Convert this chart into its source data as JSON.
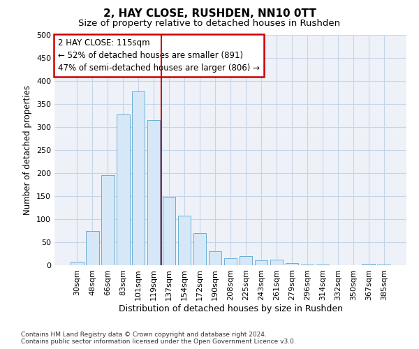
{
  "title": "2, HAY CLOSE, RUSHDEN, NN10 0TT",
  "subtitle": "Size of property relative to detached houses in Rushden",
  "xlabel": "Distribution of detached houses by size in Rushden",
  "ylabel": "Number of detached properties",
  "categories": [
    "30sqm",
    "48sqm",
    "66sqm",
    "83sqm",
    "101sqm",
    "119sqm",
    "137sqm",
    "154sqm",
    "172sqm",
    "190sqm",
    "208sqm",
    "225sqm",
    "243sqm",
    "261sqm",
    "279sqm",
    "296sqm",
    "314sqm",
    "332sqm",
    "350sqm",
    "367sqm",
    "385sqm"
  ],
  "values": [
    8,
    75,
    195,
    328,
    378,
    315,
    148,
    108,
    69,
    30,
    15,
    20,
    10,
    12,
    5,
    1,
    1,
    0,
    0,
    3,
    1
  ],
  "bar_facecolor": "#d6e8f7",
  "bar_edgecolor": "#6aaed6",
  "grid_color": "#c5d5e8",
  "background_color": "#ffffff",
  "plot_bg_color": "#eef2f8",
  "annotation_text_line1": "2 HAY CLOSE: 115sqm",
  "annotation_text_line2": "← 52% of detached houses are smaller (891)",
  "annotation_text_line3": "47% of semi-detached houses are larger (806) →",
  "annotation_box_facecolor": "#ffffff",
  "annotation_box_edgecolor": "#cc0000",
  "vline_color": "#cc0000",
  "vline_x_index": 5,
  "ylim": [
    0,
    500
  ],
  "yticks": [
    0,
    50,
    100,
    150,
    200,
    250,
    300,
    350,
    400,
    450,
    500
  ],
  "footer_line1": "Contains HM Land Registry data © Crown copyright and database right 2024.",
  "footer_line2": "Contains public sector information licensed under the Open Government Licence v3.0.",
  "title_fontsize": 11,
  "subtitle_fontsize": 9.5,
  "xlabel_fontsize": 9,
  "ylabel_fontsize": 8.5,
  "tick_fontsize": 8,
  "annot_fontsize": 8.5,
  "footer_fontsize": 6.5
}
